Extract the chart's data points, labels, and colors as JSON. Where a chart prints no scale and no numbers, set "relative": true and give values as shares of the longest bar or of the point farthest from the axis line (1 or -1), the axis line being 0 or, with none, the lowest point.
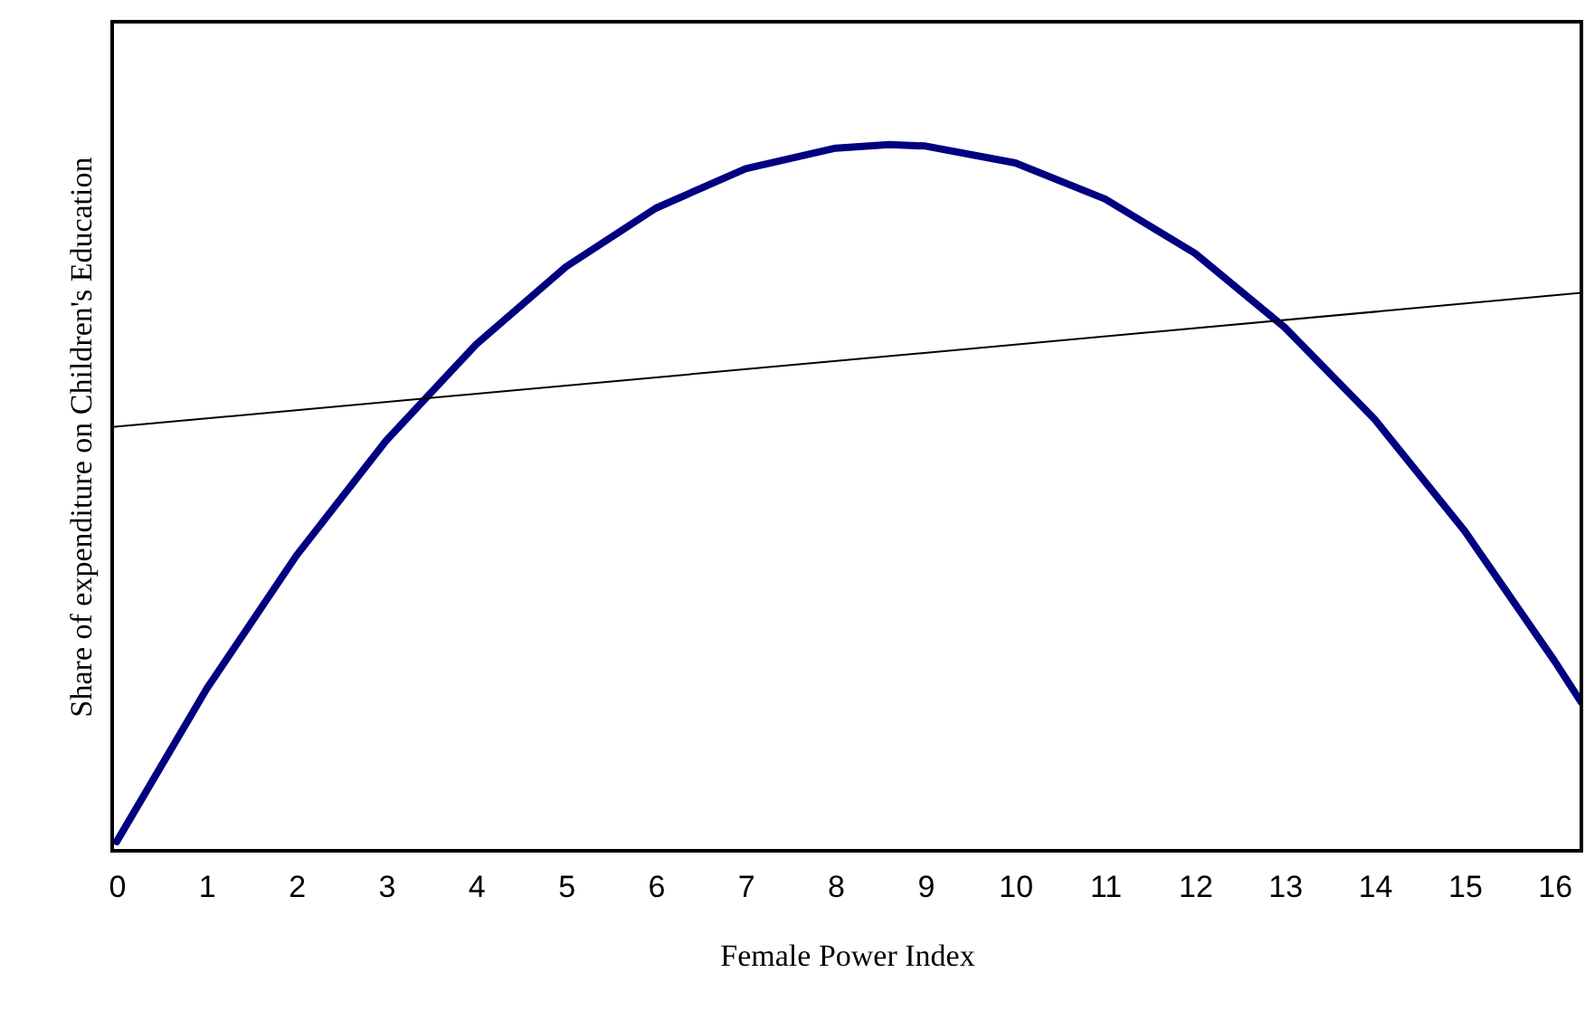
{
  "chart_data": {
    "type": "line",
    "relative": true,
    "xlabel": "Female Power Index",
    "ylabel": "Share of expenditure on Children's Education",
    "xlim": [
      -0.05,
      16.3
    ],
    "xticks": [
      0,
      1,
      2,
      3,
      4,
      5,
      6,
      7,
      8,
      9,
      10,
      11,
      12,
      13,
      14,
      15,
      16
    ],
    "grid": false,
    "marker": "none",
    "line_style": "solid",
    "series": [
      {
        "color": "#000080",
        "x": [
          0,
          1,
          2,
          3,
          4,
          5,
          6,
          7,
          8,
          8.6,
          9,
          10,
          11,
          12,
          13,
          14,
          15,
          16,
          16.3
        ],
        "values": [
          0.013,
          0.229,
          0.418,
          0.581,
          0.717,
          0.827,
          0.91,
          0.966,
          0.995,
          1,
          0.998,
          0.974,
          0.923,
          0.846,
          0.741,
          0.611,
          0.453,
          0.269,
          0.21
        ]
      },
      {
        "color": "#000000",
        "x": [
          -0.05,
          16.3
        ],
        "values": [
          0.6,
          0.79
        ]
      }
    ]
  }
}
